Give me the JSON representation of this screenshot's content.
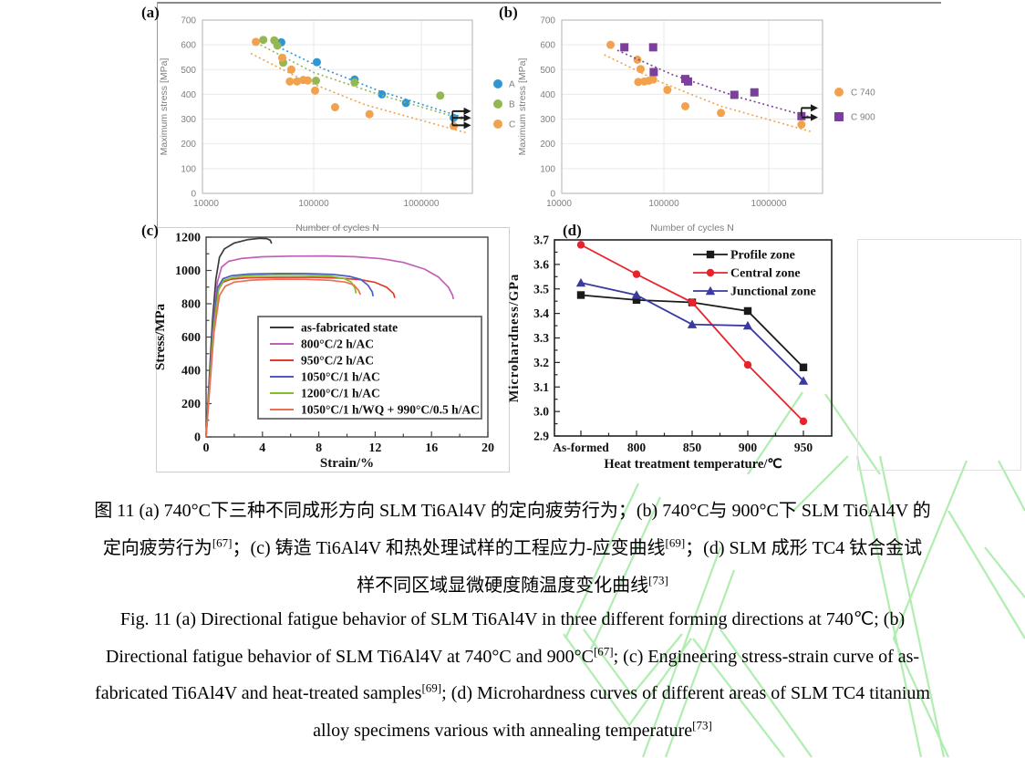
{
  "caption": {
    "lines": [
      {
        "name": "caption-zh-1",
        "segments": [
          {
            "t": "图 11 (a) 740°C下三种不同成形方向 SLM Ti6Al4V 的定向疲劳行为；(b) 740°C与 900°C下 SLM Ti6Al4V 的"
          }
        ]
      },
      {
        "name": "caption-zh-2",
        "segments": [
          {
            "t": "定向疲劳行为"
          },
          {
            "t": "[67]",
            "sup": true
          },
          {
            "t": "；(c) 铸造 Ti6Al4V 和热处理试样的工程应力-应变曲线"
          },
          {
            "t": "[69]",
            "sup": true
          },
          {
            "t": "；(d) SLM 成形 TC4 钛合金试"
          }
        ]
      },
      {
        "name": "caption-zh-3",
        "segments": [
          {
            "t": "样不同区域显微硬度随温度变化曲线"
          },
          {
            "t": "[73]",
            "sup": true
          }
        ]
      },
      {
        "name": "caption-en-1",
        "segments": [
          {
            "t": "Fig. 11 (a) Directional fatigue behavior of SLM Ti6Al4V in three different forming directions at 740℃; (b)"
          }
        ]
      },
      {
        "name": "caption-en-2",
        "segments": [
          {
            "t": "Directional fatigue behavior of SLM Ti6Al4V at 740°C and 900°C"
          },
          {
            "t": "[67]",
            "sup": true
          },
          {
            "t": "; (c) Engineering stress-strain curve of as-"
          }
        ]
      },
      {
        "name": "caption-en-3",
        "segments": [
          {
            "t": "fabricated Ti6Al4V and heat-treated samples"
          },
          {
            "t": "[69]",
            "sup": true
          },
          {
            "t": "; (d) Microhardness curves of different areas of SLM TC4 titanium"
          }
        ]
      },
      {
        "name": "caption-en-4",
        "segments": [
          {
            "t": "alloy specimens various with annealing temperature"
          },
          {
            "t": "[73]",
            "sup": true
          }
        ]
      }
    ]
  },
  "chart_data": [
    {
      "id": "a",
      "panel_label": "(a)",
      "type": "scatter",
      "x_scale": "log",
      "xlabel": "Number of cycles N",
      "ylabel": "Maximum stress [MPa]",
      "xlim": [
        10000,
        3160000
      ],
      "x_ticks": [
        {
          "v": 10000,
          "label": "10000"
        },
        {
          "v": 100000,
          "label": "100000"
        },
        {
          "v": 1000000,
          "label": "1000000"
        }
      ],
      "ylim": [
        0,
        700
      ],
      "y_ticks": [
        0,
        100,
        200,
        300,
        400,
        500,
        600,
        700
      ],
      "grid": true,
      "legend_position": "right",
      "series": [
        {
          "name": "A",
          "color": "#2e96d2",
          "marker": "circle",
          "points": [
            [
              50000,
              610
            ],
            [
              107000,
              530
            ],
            [
              240000,
              460
            ],
            [
              430000,
              400
            ],
            [
              720000,
              365
            ],
            [
              2000000,
              305
            ]
          ],
          "trend": [
            [
              43000,
              600
            ],
            [
              120000,
              505
            ],
            [
              400000,
              415
            ],
            [
              2400000,
              308
            ]
          ]
        },
        {
          "name": "B",
          "color": "#94b755",
          "marker": "circle",
          "points": [
            [
              34000,
              620
            ],
            [
              43000,
              618
            ],
            [
              46000,
              597
            ],
            [
              52000,
              528
            ],
            [
              105000,
              455
            ],
            [
              240000,
              448
            ],
            [
              1500000,
              395
            ]
          ],
          "trend": [
            [
              32000,
              600
            ],
            [
              100000,
              488
            ],
            [
              400000,
              400
            ],
            [
              2400000,
              300
            ]
          ]
        },
        {
          "name": "C",
          "color": "#f2a14d",
          "marker": "circle",
          "points": [
            [
              29000,
              612
            ],
            [
              51000,
              548
            ],
            [
              62000,
              500
            ],
            [
              60000,
              452
            ],
            [
              70000,
              452
            ],
            [
              80000,
              458
            ],
            [
              88000,
              456
            ],
            [
              103000,
              415
            ],
            [
              158000,
              348
            ],
            [
              330000,
              320
            ],
            [
              2000000,
              272
            ]
          ],
          "trend": [
            [
              26000,
              565
            ],
            [
              80000,
              458
            ],
            [
              300000,
              358
            ],
            [
              2600000,
              245
            ]
          ]
        }
      ],
      "runout_arrows": {
        "N_start": 1950000,
        "N_end": 2900000,
        "stress_levels": [
          332,
          305,
          275
        ],
        "connector": {
          "from": 275,
          "to": 332
        }
      }
    },
    {
      "id": "b",
      "panel_label": "(b)",
      "type": "scatter",
      "x_scale": "log",
      "xlabel": "Number of cycles N",
      "ylabel": "Maximum stress [MPa]",
      "xlim": [
        10000,
        3160000
      ],
      "x_ticks": [
        {
          "v": 10000,
          "label": "10000"
        },
        {
          "v": 100000,
          "label": "100000"
        },
        {
          "v": 1000000,
          "label": "1000000"
        }
      ],
      "ylim": [
        0,
        700
      ],
      "y_ticks": [
        0,
        100,
        200,
        300,
        400,
        500,
        600,
        700
      ],
      "grid": true,
      "legend_position": "right",
      "series": [
        {
          "name": "C 740",
          "color": "#f2a14d",
          "marker": "circle",
          "points": [
            [
              31000,
              600
            ],
            [
              56000,
              540
            ],
            [
              60000,
              502
            ],
            [
              57000,
              450
            ],
            [
              65000,
              452
            ],
            [
              72000,
              455
            ],
            [
              79000,
              460
            ],
            [
              108000,
              418
            ],
            [
              160000,
              352
            ],
            [
              350000,
              325
            ],
            [
              2050000,
              278
            ]
          ],
          "trend": [
            [
              27000,
              560
            ],
            [
              90000,
              452
            ],
            [
              350000,
              352
            ],
            [
              2600000,
              248
            ]
          ]
        },
        {
          "name": "C 900",
          "color": "#7d3f9d",
          "marker": "square",
          "points": [
            [
              42000,
              590
            ],
            [
              79000,
              590
            ],
            [
              80000,
              490
            ],
            [
              160000,
              462
            ],
            [
              170000,
              452
            ],
            [
              470000,
              398
            ],
            [
              730000,
              408
            ],
            [
              2050000,
              312
            ]
          ],
          "trend": [
            [
              36000,
              578
            ],
            [
              120000,
              480
            ],
            [
              500000,
              390
            ],
            [
              2500000,
              308
            ]
          ]
        }
      ],
      "runout_arrows": {
        "N_start": 2050000,
        "N_end": 2950000,
        "stress_levels": [
          345,
          307
        ],
        "connector": {
          "from": 312,
          "to": 345
        }
      }
    },
    {
      "id": "c",
      "panel_label": "(c)",
      "type": "line",
      "xlabel": "Strain/%",
      "ylabel": "Stress/MPa",
      "xlim": [
        0,
        20
      ],
      "x_ticks": [
        0,
        4,
        8,
        12,
        16,
        20
      ],
      "x_minor_ticks": [
        2,
        6,
        10,
        14,
        18
      ],
      "ylim": [
        0,
        1200
      ],
      "y_ticks": [
        0,
        200,
        400,
        600,
        800,
        1000,
        1200
      ],
      "y_minor_ticks": [
        100,
        300,
        500,
        700,
        900,
        1100
      ],
      "legend_position": "inside",
      "series": [
        {
          "name": "as-fabricated state",
          "color": "#3b3b3b",
          "points": [
            [
              0,
              0
            ],
            [
              0.45,
              700
            ],
            [
              0.7,
              950
            ],
            [
              0.95,
              1080
            ],
            [
              1.3,
              1130
            ],
            [
              2.0,
              1165
            ],
            [
              3.0,
              1186
            ],
            [
              3.8,
              1193
            ],
            [
              4.3,
              1191
            ],
            [
              4.55,
              1182
            ],
            [
              4.65,
              1162
            ]
          ]
        },
        {
          "name": "800°C/2 h/AC",
          "color": "#c161b6",
          "points": [
            [
              0,
              0
            ],
            [
              0.5,
              680
            ],
            [
              0.8,
              930
            ],
            [
              1.1,
              1020
            ],
            [
              1.6,
              1055
            ],
            [
              2.5,
              1072
            ],
            [
              4,
              1082
            ],
            [
              6,
              1086
            ],
            [
              8.5,
              1087
            ],
            [
              10.5,
              1083
            ],
            [
              12.5,
              1070
            ],
            [
              14,
              1048
            ],
            [
              15.5,
              1008
            ],
            [
              16.5,
              960
            ],
            [
              17.2,
              900
            ],
            [
              17.5,
              850
            ],
            [
              17.55,
              828
            ]
          ]
        },
        {
          "name": "950°C/2 h/AC",
          "color": "#e03c2d",
          "points": [
            [
              0,
              0
            ],
            [
              0.5,
              650
            ],
            [
              0.85,
              880
            ],
            [
              1.2,
              930
            ],
            [
              1.8,
              948
            ],
            [
              3,
              956
            ],
            [
              5,
              959
            ],
            [
              7.5,
              959
            ],
            [
              9.5,
              954
            ],
            [
              11,
              944
            ],
            [
              12,
              928
            ],
            [
              12.8,
              900
            ],
            [
              13.3,
              862
            ],
            [
              13.4,
              835
            ]
          ]
        },
        {
          "name": "1050°C/1 h/AC",
          "color": "#4a5bc4",
          "points": [
            [
              0,
              0
            ],
            [
              0.5,
              660
            ],
            [
              0.85,
              900
            ],
            [
              1.2,
              950
            ],
            [
              1.8,
              968
            ],
            [
              3,
              978
            ],
            [
              5,
              982
            ],
            [
              7,
              982
            ],
            [
              9,
              976
            ],
            [
              10.2,
              964
            ],
            [
              11,
              945
            ],
            [
              11.5,
              910
            ],
            [
              11.8,
              870
            ],
            [
              11.85,
              845
            ]
          ]
        },
        {
          "name": "1200°C/1 h/AC",
          "color": "#80c026",
          "points": [
            [
              0,
              0
            ],
            [
              0.52,
              640
            ],
            [
              0.9,
              890
            ],
            [
              1.25,
              940
            ],
            [
              1.9,
              958
            ],
            [
              3,
              968
            ],
            [
              5,
              973
            ],
            [
              7,
              972
            ],
            [
              8.8,
              966
            ],
            [
              9.8,
              952
            ],
            [
              10.3,
              930
            ],
            [
              10.55,
              898
            ],
            [
              10.65,
              862
            ]
          ]
        },
        {
          "name": "1050°C/1 h/WQ + 990°C/0.5 h/AC",
          "color": "#ee6e55",
          "points": [
            [
              0,
              0
            ],
            [
              0.55,
              620
            ],
            [
              0.95,
              850
            ],
            [
              1.35,
              905
            ],
            [
              2,
              930
            ],
            [
              3.2,
              942
            ],
            [
              5,
              948
            ],
            [
              7,
              947
            ],
            [
              8.8,
              941
            ],
            [
              9.9,
              930
            ],
            [
              10.5,
              912
            ],
            [
              10.82,
              880
            ],
            [
              10.95,
              855
            ]
          ]
        }
      ]
    },
    {
      "id": "d",
      "panel_label": "(d)",
      "type": "line",
      "xlabel": "Heat treatment temperature/℃",
      "ylabel": "Microhardness/GPa",
      "categories": [
        "As-formed",
        "800",
        "850",
        "900",
        "950"
      ],
      "ylim": [
        2.9,
        3.7
      ],
      "y_ticks": [
        2.9,
        3.0,
        3.1,
        3.2,
        3.3,
        3.4,
        3.5,
        3.6,
        3.7
      ],
      "legend_position": "inside-top-right",
      "series": [
        {
          "name": "Profile zone",
          "color": "#1a1a1a",
          "marker": "square",
          "values": [
            3.475,
            3.455,
            3.445,
            3.41,
            3.18
          ]
        },
        {
          "name": "Central zone",
          "color": "#e8232b",
          "marker": "circle",
          "values": [
            3.68,
            3.56,
            3.445,
            3.19,
            2.96
          ]
        },
        {
          "name": "Junctional zone",
          "color": "#3a3aa0",
          "marker": "triangle",
          "values": [
            3.525,
            3.475,
            3.355,
            3.35,
            3.125
          ]
        }
      ]
    }
  ],
  "style": {
    "axis_text_gray": "#7f7f7f",
    "plot_border_gray": "#bfbfbf",
    "grid_gray": "#e9e9e9",
    "axis_black": "#222222",
    "watermark_green": "#8fe68f"
  }
}
